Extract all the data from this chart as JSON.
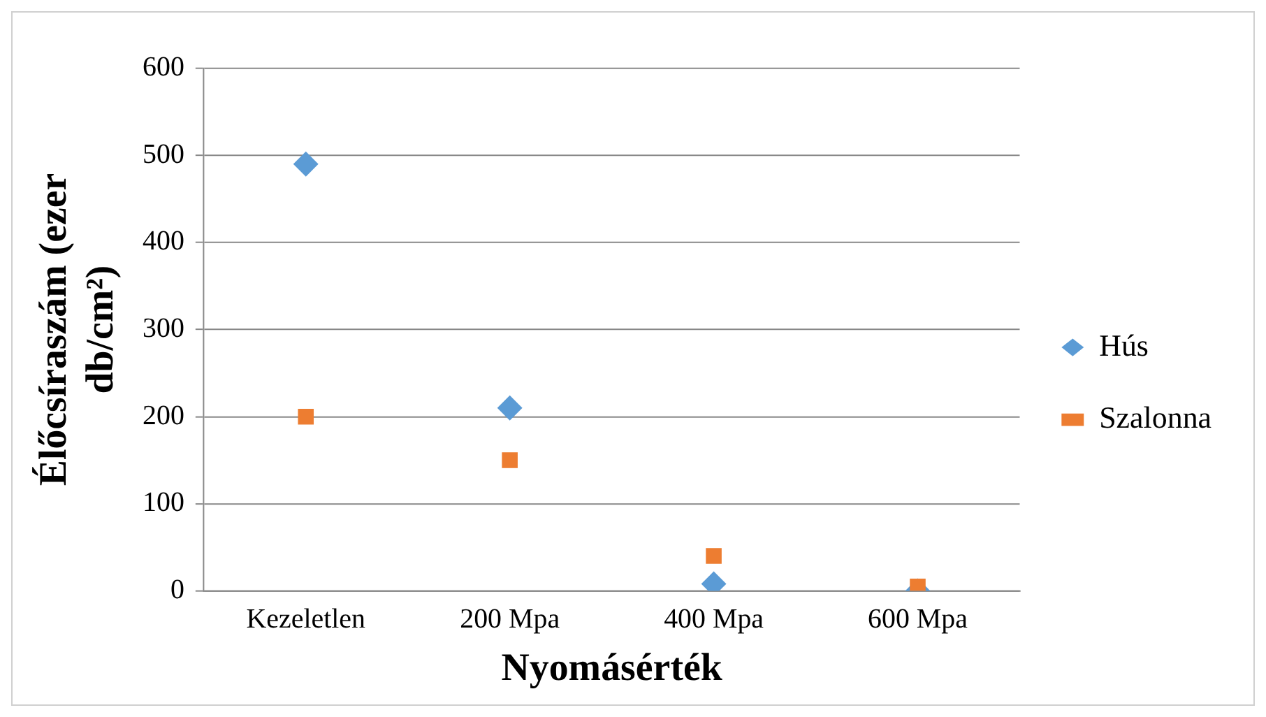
{
  "chart_data": {
    "type": "scatter",
    "xlabel": "Nyomásérték",
    "ylabel": "Élőcsíraszám (ezer db/cm²)",
    "categories": [
      "Kezeletlen",
      "200 Mpa",
      "400 Mpa",
      "600 Mpa"
    ],
    "series": [
      {
        "name": "Hús",
        "color": "#5b9bd5",
        "marker": "diamond",
        "values": [
          490,
          210,
          8,
          0
        ]
      },
      {
        "name": "Szalonna",
        "color": "#ed7d31",
        "marker": "square",
        "values": [
          200,
          150,
          40,
          5
        ]
      }
    ],
    "ylim": [
      0,
      600
    ],
    "yticks": [
      0,
      100,
      200,
      300,
      400,
      500,
      600
    ],
    "grid": "y",
    "legend": "right"
  }
}
